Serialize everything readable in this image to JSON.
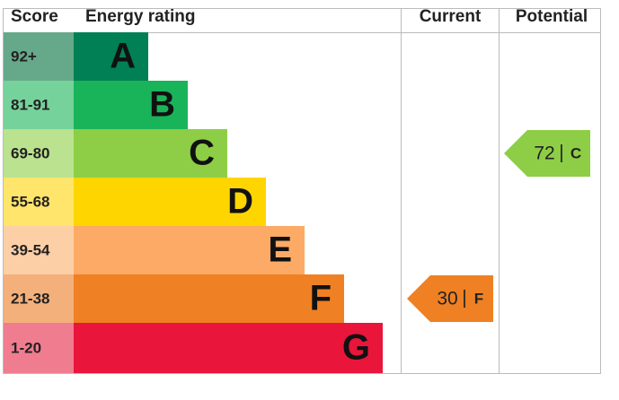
{
  "headers": {
    "score": "Score",
    "rating": "Energy rating",
    "current": "Current",
    "potential": "Potential"
  },
  "bands": [
    {
      "score": "92+",
      "rating": "A",
      "color": "#008054",
      "score_color": "#66a88a"
    },
    {
      "score": "81-91",
      "rating": "B",
      "color": "#19b459",
      "score_color": "#75d29b"
    },
    {
      "score": "69-80",
      "rating": "C",
      "color": "#8dce46",
      "score_color": "#bae28f"
    },
    {
      "score": "55-68",
      "rating": "D",
      "color": "#ffd500",
      "score_color": "#ffe56b"
    },
    {
      "score": "39-54",
      "rating": "E",
      "color": "#fcaa65",
      "score_color": "#fdcfa6"
    },
    {
      "score": "21-38",
      "rating": "F",
      "color": "#ef8023",
      "score_color": "#f4b07b"
    },
    {
      "score": "1-20",
      "rating": "G",
      "color": "#e9153b",
      "score_color": "#f07c90"
    }
  ],
  "current": {
    "value": 30,
    "separator": "|",
    "band": "F"
  },
  "potential": {
    "value": 72,
    "separator": "|",
    "band": "C"
  }
}
